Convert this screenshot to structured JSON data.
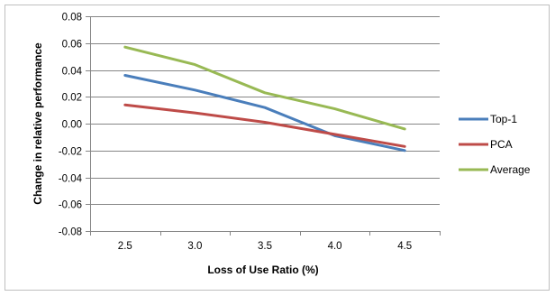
{
  "chart_data": {
    "type": "line",
    "x": [
      2.5,
      3.0,
      3.5,
      4.0,
      4.5
    ],
    "x_tick_labels": [
      "2.5",
      "3.0",
      "3.5",
      "4.0",
      "4.5"
    ],
    "series": [
      {
        "name": "Top-1",
        "color": "#4a7ebb",
        "values": [
          0.036,
          0.025,
          0.012,
          -0.009,
          -0.02
        ]
      },
      {
        "name": "PCA",
        "color": "#be4b48",
        "values": [
          0.014,
          0.008,
          0.001,
          -0.008,
          -0.017
        ]
      },
      {
        "name": "Average",
        "color": "#98b954",
        "values": [
          0.057,
          0.044,
          0.023,
          0.011,
          -0.004
        ]
      }
    ],
    "xlabel": "Loss of Use Ratio (%)",
    "ylabel": "Change in relative performance",
    "ylim": [
      -0.08,
      0.08
    ],
    "y_ticks": [
      0.08,
      0.06,
      0.04,
      0.02,
      0.0,
      -0.02,
      -0.04,
      -0.06,
      -0.08
    ],
    "y_tick_labels": [
      "0.08",
      "0.06",
      "0.04",
      "0.02",
      "0.00",
      "-0.02",
      "-0.04",
      "-0.06",
      "-0.08"
    ],
    "grid": "horizontal",
    "legend_position": "right"
  }
}
